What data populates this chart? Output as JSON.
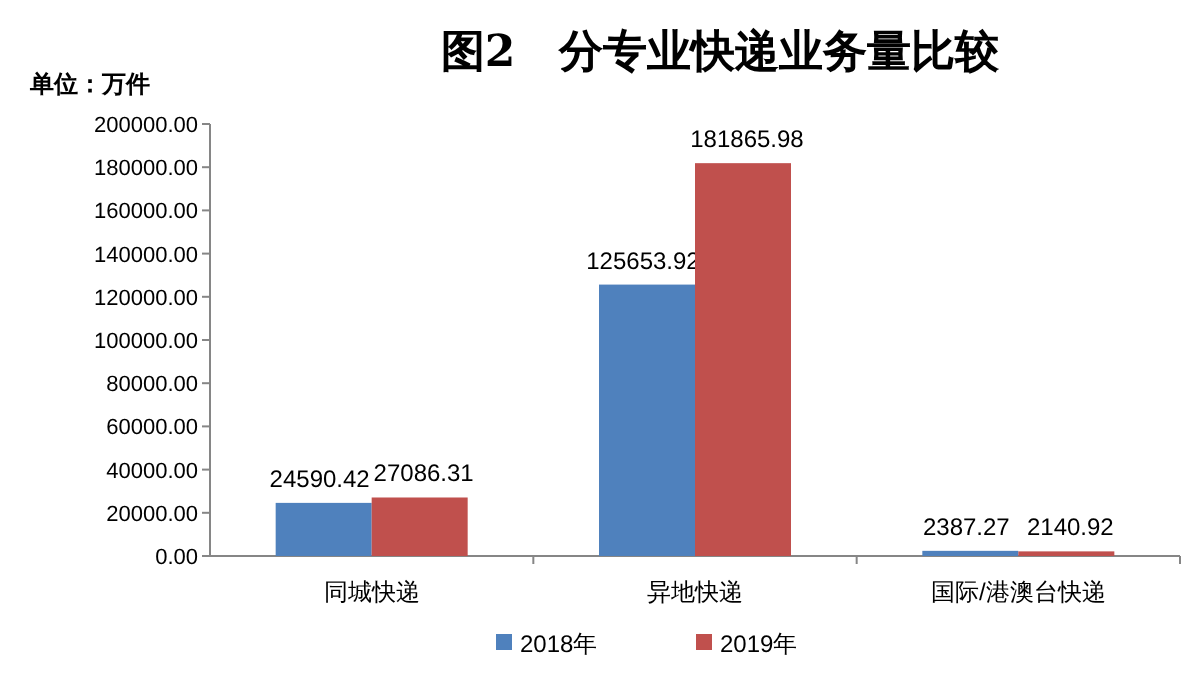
{
  "chart_data": {
    "type": "bar",
    "title": "图2　分专业快递业务量比较",
    "ylabel": "单位：万件",
    "categories": [
      "同城快递",
      "异地快递",
      "国际/港澳台快递"
    ],
    "series": [
      {
        "name": "2018年",
        "color": "#4f81bd",
        "values": [
          24590.42,
          125653.92,
          2387.27
        ]
      },
      {
        "name": "2019年",
        "color": "#c0504d",
        "values": [
          27086.31,
          181865.98,
          2140.92
        ]
      }
    ],
    "ylim": [
      0,
      200000
    ],
    "yticks": [
      {
        "value": 0,
        "label": "0.00"
      },
      {
        "value": 20000,
        "label": "20000.00"
      },
      {
        "value": 40000,
        "label": "40000.00"
      },
      {
        "value": 60000,
        "label": "60000.00"
      },
      {
        "value": 80000,
        "label": "80000.00"
      },
      {
        "value": 100000,
        "label": "100000.00"
      },
      {
        "value": 120000,
        "label": "120000.00"
      },
      {
        "value": 140000,
        "label": "140000.00"
      },
      {
        "value": 160000,
        "label": "160000.00"
      },
      {
        "value": 180000,
        "label": "180000.00"
      },
      {
        "value": 200000,
        "label": "200000.00"
      }
    ],
    "data_labels": true,
    "legend": "bottom"
  }
}
